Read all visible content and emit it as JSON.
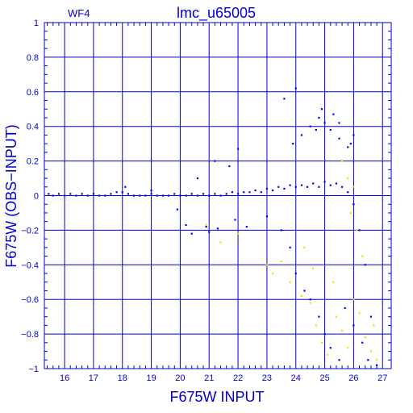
{
  "chart_data": {
    "type": "scatter",
    "title": "lmc_u65005",
    "subtitle": "WF4",
    "xlabel": "F675W INPUT",
    "ylabel": "F675W (OBS−INPUT)",
    "xlim": [
      15.3,
      27.3
    ],
    "ylim": [
      -1,
      1
    ],
    "x_ticks": [
      16,
      17,
      18,
      19,
      20,
      21,
      22,
      23,
      24,
      25,
      26,
      27
    ],
    "y_ticks": [
      -1,
      -0.8,
      -0.6,
      -0.4,
      -0.2,
      0,
      0.2,
      0.4,
      0.6,
      0.8,
      1
    ],
    "x_tick_labels": [
      "16",
      "17",
      "18",
      "19",
      "20",
      "21",
      "22",
      "23",
      "24",
      "25",
      "26",
      "27"
    ],
    "y_tick_labels": [
      "−1",
      "−0.8",
      "−0.6",
      "−0.4",
      "−0.2",
      "0",
      "0.2",
      "0.4",
      "0.6",
      "0.8",
      "1"
    ],
    "grid": true,
    "colors": {
      "axis": "#0000cc",
      "grid": "#0000cc",
      "series_main": "#0000ff",
      "series_outlier": "#ffd700"
    },
    "series": [
      {
        "role": "recovered stars",
        "color": "#0000ff",
        "points": [
          [
            15.45,
            0.01
          ],
          [
            15.6,
            0.0
          ],
          [
            15.8,
            0.01
          ],
          [
            16.0,
            0.0
          ],
          [
            16.2,
            0.01
          ],
          [
            16.4,
            0.0
          ],
          [
            16.6,
            0.01
          ],
          [
            16.8,
            0.0
          ],
          [
            17.0,
            0.01
          ],
          [
            17.2,
            0.0
          ],
          [
            17.4,
            0.0
          ],
          [
            17.6,
            0.01
          ],
          [
            17.8,
            0.02
          ],
          [
            18.0,
            0.02
          ],
          [
            18.2,
            0.01
          ],
          [
            18.4,
            0.0
          ],
          [
            18.6,
            0.0
          ],
          [
            18.8,
            0.0
          ],
          [
            19.0,
            0.01
          ],
          [
            19.2,
            0.0
          ],
          [
            19.4,
            0.0
          ],
          [
            19.6,
            0.0
          ],
          [
            19.8,
            0.01
          ],
          [
            20.0,
            0.0
          ],
          [
            20.2,
            0.0
          ],
          [
            20.4,
            0.01
          ],
          [
            20.6,
            0.0
          ],
          [
            20.8,
            0.01
          ],
          [
            21.0,
            0.0
          ],
          [
            21.2,
            0.01
          ],
          [
            21.4,
            0.0
          ],
          [
            21.6,
            0.01
          ],
          [
            21.8,
            0.02
          ],
          [
            22.0,
            0.01
          ],
          [
            22.2,
            0.02
          ],
          [
            22.4,
            0.02
          ],
          [
            22.6,
            0.03
          ],
          [
            22.8,
            0.02
          ],
          [
            23.0,
            0.04
          ],
          [
            23.2,
            0.03
          ],
          [
            23.4,
            0.05
          ],
          [
            23.6,
            0.04
          ],
          [
            23.8,
            0.06
          ],
          [
            24.0,
            0.05
          ],
          [
            24.2,
            0.06
          ],
          [
            24.4,
            0.05
          ],
          [
            24.6,
            0.07
          ],
          [
            24.8,
            0.05
          ],
          [
            25.0,
            0.08
          ],
          [
            25.2,
            0.06
          ],
          [
            25.4,
            0.07
          ],
          [
            25.6,
            0.05
          ],
          [
            25.8,
            0.02
          ],
          [
            26.0,
            -0.05
          ],
          [
            26.2,
            -0.2
          ],
          [
            26.4,
            -0.4
          ],
          [
            26.6,
            -0.7
          ],
          [
            21.2,
            0.2
          ],
          [
            21.7,
            0.17
          ],
          [
            22.0,
            0.27
          ],
          [
            23.6,
            0.56
          ],
          [
            22.3,
            -0.18
          ],
          [
            20.2,
            -0.17
          ],
          [
            20.4,
            -0.22
          ],
          [
            20.9,
            -0.18
          ],
          [
            21.3,
            -0.19
          ],
          [
            21.0,
            -0.21
          ],
          [
            23.0,
            -0.12
          ],
          [
            23.5,
            -0.2
          ],
          [
            23.8,
            -0.3
          ],
          [
            24.0,
            -0.45
          ],
          [
            24.3,
            -0.55
          ],
          [
            24.5,
            -0.6
          ],
          [
            24.8,
            -0.7
          ],
          [
            25.0,
            -0.8
          ],
          [
            25.2,
            -0.88
          ],
          [
            25.5,
            -0.95
          ],
          [
            25.7,
            -0.65
          ],
          [
            26.0,
            -0.75
          ],
          [
            26.3,
            -0.85
          ],
          [
            26.5,
            -0.95
          ],
          [
            26.8,
            -0.98
          ],
          [
            24.2,
            0.35
          ],
          [
            24.5,
            0.4
          ],
          [
            24.8,
            0.45
          ],
          [
            25.0,
            0.42
          ],
          [
            25.2,
            0.38
          ],
          [
            24.7,
            0.38
          ],
          [
            25.3,
            0.47
          ],
          [
            25.5,
            0.42
          ],
          [
            26.0,
            0.35
          ],
          [
            25.9,
            0.3
          ],
          [
            24.0,
            0.62
          ],
          [
            25.5,
            0.33
          ],
          [
            25.8,
            0.28
          ],
          [
            24.9,
            0.5
          ],
          [
            23.9,
            0.3
          ],
          [
            19.9,
            -0.08
          ],
          [
            18.1,
            0.05
          ],
          [
            19.0,
            0.03
          ],
          [
            20.6,
            0.1
          ],
          [
            21.9,
            -0.14
          ]
        ]
      },
      {
        "role": "outliers",
        "color": "#ffd700",
        "points": [
          [
            20.9,
            -0.17
          ],
          [
            21.4,
            -0.27
          ],
          [
            22.0,
            -0.22
          ],
          [
            23.0,
            -0.4
          ],
          [
            23.2,
            -0.45
          ],
          [
            23.5,
            -0.38
          ],
          [
            23.8,
            -0.5
          ],
          [
            24.2,
            -0.58
          ],
          [
            24.5,
            -0.62
          ],
          [
            24.7,
            -0.75
          ],
          [
            24.9,
            -0.85
          ],
          [
            25.1,
            -0.92
          ],
          [
            25.4,
            -0.7
          ],
          [
            25.6,
            -0.78
          ],
          [
            25.8,
            -0.88
          ],
          [
            26.0,
            -0.6
          ],
          [
            26.2,
            -0.68
          ],
          [
            26.4,
            -0.82
          ],
          [
            26.6,
            -0.9
          ],
          [
            26.8,
            -0.95
          ],
          [
            25.9,
            -0.1
          ],
          [
            26.1,
            -0.2
          ],
          [
            26.3,
            -0.35
          ],
          [
            25.6,
            0.2
          ],
          [
            25.8,
            0.1
          ],
          [
            26.0,
            0.05
          ],
          [
            24.3,
            -0.3
          ],
          [
            24.6,
            -0.42
          ],
          [
            25.3,
            -0.5
          ],
          [
            26.7,
            -0.75
          ]
        ]
      }
    ]
  }
}
